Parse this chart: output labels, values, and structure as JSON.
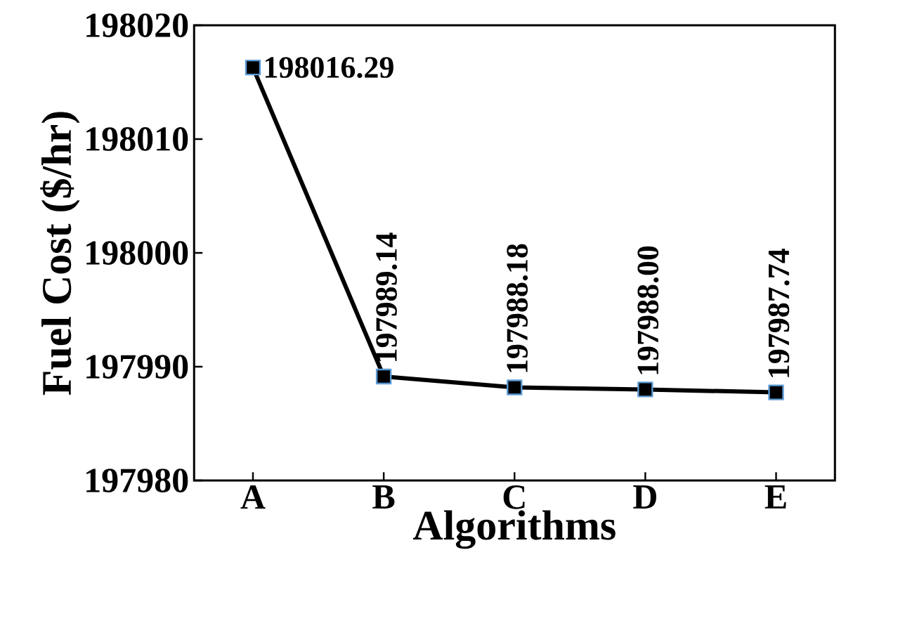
{
  "chart_data": {
    "type": "line",
    "xlabel": "Algorithms",
    "ylabel": "Fuel Cost ($/hr)",
    "categories": [
      "A",
      "B",
      "C",
      "D",
      "E"
    ],
    "values": [
      198016.29,
      197989.14,
      197988.18,
      197988.0,
      197987.74
    ],
    "value_labels": [
      "198016.29",
      "197989.14",
      "197988.18",
      "197988.00",
      "197987.74"
    ],
    "color": "#000000",
    "marker": "square",
    "line_style": "solid",
    "grid": false,
    "ylim": [
      197980,
      198020
    ],
    "yticks": [
      197980,
      197990,
      198000,
      198010,
      198020
    ]
  }
}
